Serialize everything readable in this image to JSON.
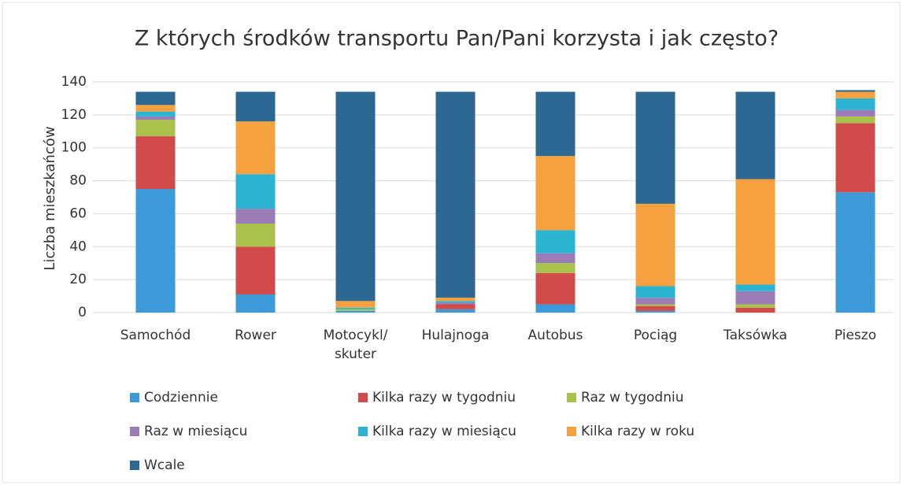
{
  "chart_data": {
    "type": "stacked_bar",
    "title": "Z których środków transportu Pan/Pani korzysta i jak często?",
    "y_label": "Liczba mieszkańców",
    "categories": [
      "Samochód",
      "Rower",
      "Motocykl/\nskuter",
      "Hulajnoga",
      "Autobus",
      "Pociąg",
      "Taksówka",
      "Pieszo"
    ],
    "series": [
      {
        "name": "Codziennie",
        "color": "#3c9ad8",
        "values": [
          75,
          11,
          1,
          2,
          5,
          1,
          0,
          73
        ]
      },
      {
        "name": "Kilka razy w tygodniu",
        "color": "#d24b4b",
        "values": [
          32,
          29,
          0,
          3,
          19,
          3,
          3,
          42
        ]
      },
      {
        "name": "Raz w tygodniu",
        "color": "#a8c24c",
        "values": [
          10,
          14,
          1,
          0,
          6,
          1,
          2,
          4
        ]
      },
      {
        "name": "Raz w miesiącu",
        "color": "#9a7cb6",
        "values": [
          2,
          9,
          0,
          1,
          6,
          4,
          8,
          4
        ]
      },
      {
        "name": "Kilka razy w miesiącu",
        "color": "#2ab4d2",
        "values": [
          3,
          21,
          1,
          1,
          14,
          7,
          4,
          7
        ]
      },
      {
        "name": "Kilka razy w roku",
        "color": "#f6a13f",
        "values": [
          4,
          32,
          4,
          2,
          45,
          50,
          64,
          4
        ]
      },
      {
        "name": "Wcale",
        "color": "#2c6891",
        "values": [
          8,
          18,
          127,
          125,
          39,
          68,
          53,
          1
        ]
      }
    ],
    "ylim": [
      0,
      140
    ],
    "yticks": [
      0,
      20,
      40,
      60,
      80,
      100,
      120,
      140
    ],
    "grid": true,
    "legend": "bottom"
  }
}
